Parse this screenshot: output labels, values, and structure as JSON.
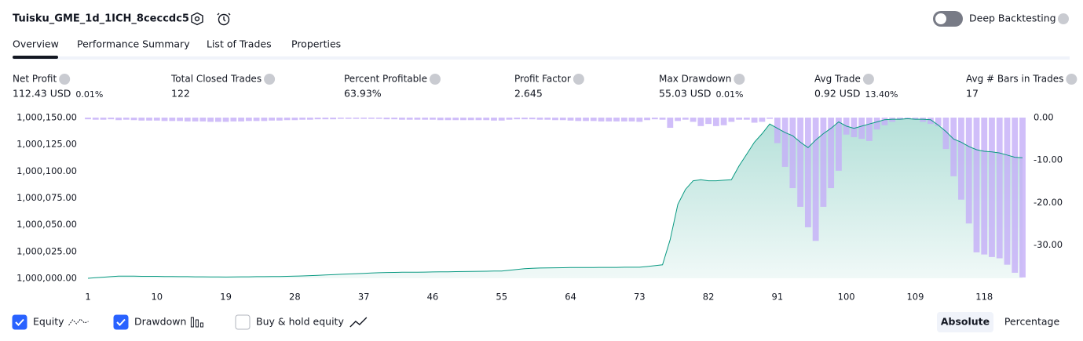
{
  "header": {
    "title": "Tuisku_GME_1d_1ICH_8ceccdc5",
    "toggle": "Deep Backtesting"
  },
  "tabs": [
    "Overview",
    "Performance Summary",
    "List of Trades",
    "Properties"
  ],
  "metrics": [
    {
      "label": "Net Profit",
      "value": "112.43 USD",
      "extra": "0.01%",
      "tone": "positive"
    },
    {
      "label": "Total Closed Trades",
      "value": "122",
      "tone": "neutral"
    },
    {
      "label": "Percent Profitable",
      "value": "63.93%",
      "tone": "positive"
    },
    {
      "label": "Profit Factor",
      "value": "2.645",
      "tone": "positive"
    },
    {
      "label": "Max Drawdown",
      "value": "55.03 USD",
      "extra": "0.01%",
      "tone": "negative"
    },
    {
      "label": "Avg Trade",
      "value": "0.92 USD",
      "extra": "13.40%",
      "tone": "positive"
    },
    {
      "label": "Avg # Bars in Trades",
      "value": "17",
      "tone": "neutral"
    }
  ],
  "chart_data": {
    "type": "combo",
    "x": [
      1,
      2,
      3,
      4,
      5,
      6,
      7,
      8,
      9,
      10,
      11,
      12,
      13,
      14,
      15,
      16,
      17,
      18,
      19,
      20,
      21,
      22,
      23,
      24,
      25,
      26,
      27,
      28,
      29,
      30,
      31,
      32,
      33,
      34,
      35,
      36,
      37,
      38,
      39,
      40,
      41,
      42,
      43,
      44,
      45,
      46,
      47,
      48,
      49,
      50,
      51,
      52,
      53,
      54,
      55,
      56,
      57,
      58,
      59,
      60,
      61,
      62,
      63,
      64,
      65,
      66,
      67,
      68,
      69,
      70,
      71,
      72,
      73,
      74,
      75,
      76,
      77,
      78,
      79,
      80,
      81,
      82,
      83,
      84,
      85,
      86,
      87,
      88,
      89,
      90,
      91,
      92,
      93,
      94,
      95,
      96,
      97,
      98,
      99,
      100,
      101,
      102,
      103,
      104,
      105,
      106,
      107,
      108,
      109,
      110,
      111,
      112,
      113,
      114,
      115,
      116,
      117,
      118,
      119,
      120,
      121,
      122,
      123
    ],
    "series": [
      {
        "name": "Equity",
        "color": "#089981",
        "values": [
          1000000,
          1000000.5,
          1000001,
          1000001.5,
          1000002,
          1000002,
          1000002,
          1000001.8,
          1000001.8,
          1000001.8,
          1000001.6,
          1000001.6,
          1000001.5,
          1000001.5,
          1000001.4,
          1000001.4,
          1000001.3,
          1000001.3,
          1000001.2,
          1000001.3,
          1000001.4,
          1000001.4,
          1000001.5,
          1000001.5,
          1000001.6,
          1000001.7,
          1000001.8,
          1000002,
          1000002.2,
          1000002.5,
          1000002.8,
          1000003.1,
          1000003.4,
          1000003.7,
          1000004,
          1000004.3,
          1000004.6,
          1000004.9,
          1000005.2,
          1000005.4,
          1000005.5,
          1000005.6,
          1000005.6,
          1000005.7,
          1000005.8,
          1000005.9,
          1000006,
          1000006.1,
          1000006.2,
          1000006.3,
          1000006.4,
          1000006.5,
          1000006.6,
          1000006.7,
          1000006.8,
          1000007.5,
          1000008.2,
          1000008.9,
          1000009.4,
          1000009.6,
          1000009.7,
          1000009.8,
          1000009.9,
          1000010,
          1000010,
          1000010.1,
          1000010.1,
          1000010.2,
          1000010.2,
          1000010.2,
          1000010.3,
          1000010.3,
          1000010.3,
          1000011,
          1000011.8,
          1000012.6,
          1000036,
          1000069,
          1000083,
          1000091,
          1000092,
          1000091,
          1000091,
          1000091.5,
          1000092,
          1000105,
          1000116,
          1000127,
          1000135,
          1000144,
          1000140,
          1000136,
          1000133,
          1000127,
          1000122,
          1000129,
          1000135,
          1000140,
          1000146,
          1000142,
          1000140,
          1000142,
          1000144,
          1000146,
          1000148,
          1000148.5,
          1000148.5,
          1000149,
          1000148.5,
          1000148.5,
          1000148,
          1000143,
          1000137,
          1000130,
          1000127,
          1000123,
          1000120,
          1000118.5,
          1000118,
          1000117,
          1000115,
          1000113,
          1000112.43
        ]
      },
      {
        "name": "Drawdown",
        "color": "#c4aef7",
        "axis": "y2",
        "values": [
          -0.4,
          -0.5,
          -0.5,
          -0.4,
          -0.6,
          -0.5,
          -0.6,
          -0.7,
          -0.7,
          -0.7,
          -0.8,
          -0.8,
          -0.8,
          -0.9,
          -0.9,
          -0.9,
          -1.0,
          -1.0,
          -1.0,
          -0.9,
          -0.9,
          -0.8,
          -0.8,
          -0.8,
          -0.7,
          -0.7,
          -0.6,
          -0.6,
          -0.5,
          -0.5,
          -0.4,
          -0.4,
          -0.4,
          -0.3,
          -0.3,
          -0.3,
          -0.3,
          -0.3,
          -0.3,
          -0.4,
          -0.4,
          -0.5,
          -0.5,
          -0.5,
          -0.5,
          -0.5,
          -0.6,
          -0.6,
          -0.6,
          -0.6,
          -0.6,
          -0.6,
          -0.6,
          -0.7,
          -0.7,
          -0.5,
          -0.4,
          -0.4,
          -0.4,
          -0.5,
          -0.5,
          -0.6,
          -0.6,
          -0.7,
          -0.8,
          -0.8,
          -0.8,
          -0.9,
          -0.9,
          -0.9,
          -0.9,
          -0.9,
          -1.0,
          -0.6,
          -0.4,
          -0.5,
          -2.4,
          -0.8,
          -0.5,
          -1.0,
          -2.0,
          -1.5,
          -2.0,
          -1.8,
          -1.0,
          -0.5,
          -0.5,
          -1.2,
          -1.0,
          -0.3,
          -6.0,
          -11.6,
          -16.6,
          -21.0,
          -25.8,
          -29.0,
          -21.0,
          -16.6,
          -12.5,
          -4.0,
          -4.6,
          -5.0,
          -5.5,
          -2.8,
          -1.8,
          -1.0,
          -0.5,
          -0.3,
          -0.5,
          -1.0,
          -1.5,
          -2.0,
          -7.4,
          -13.8,
          -19.3,
          -24.9,
          -31.7,
          -32.2,
          -32.8,
          -33.1,
          -34.6,
          -36.5,
          -37.6
        ]
      }
    ],
    "xlim": [
      1,
      123
    ],
    "xticks": [
      1,
      10,
      19,
      28,
      37,
      46,
      55,
      64,
      73,
      82,
      91,
      100,
      109,
      118
    ],
    "ylim": [
      1000000,
      1000150
    ],
    "yticks": [
      {
        "value": 1000000,
        "label": "1,000,000.00"
      },
      {
        "value": 1000025,
        "label": "1,000,025.00"
      },
      {
        "value": 1000050,
        "label": "1,000,050.00"
      },
      {
        "value": 1000075,
        "label": "1,000,075.00"
      },
      {
        "value": 1000100,
        "label": "1,000,100.00"
      },
      {
        "value": 1000125,
        "label": "1,000,125.00"
      },
      {
        "value": 1000150,
        "label": "1,000,150.00"
      }
    ],
    "y2lim": [
      -37.8,
      0
    ],
    "y2ticks": [
      {
        "value": 0,
        "label": "0.00"
      },
      {
        "value": -10,
        "label": "-10.00"
      },
      {
        "value": -20,
        "label": "-20.00"
      },
      {
        "value": -30,
        "label": "-30.00"
      }
    ]
  },
  "footer": {
    "extra_option": "Buy & hold equity",
    "buttons": [
      "Absolute",
      "Percentage"
    ]
  }
}
